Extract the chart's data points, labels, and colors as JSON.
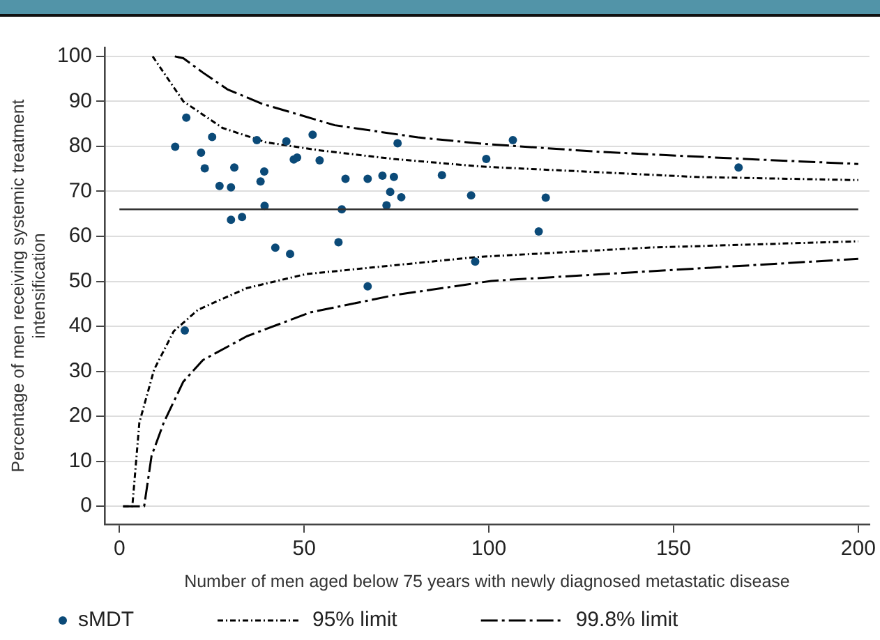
{
  "chart_data": {
    "type": "scatter",
    "xlabel": "Number of men aged below 75 years with newly diagnosed metastatic disease",
    "ylabel": "Percentage of men receiving systemic treatment intensification",
    "xlim": [
      -4,
      203
    ],
    "ylim": [
      -4,
      102
    ],
    "xticks": [
      0,
      50,
      100,
      150,
      200
    ],
    "yticks": [
      0,
      10,
      20,
      30,
      40,
      50,
      60,
      70,
      80,
      90,
      100
    ],
    "grid": "y",
    "legend": "bottom",
    "ref_lines": [
      {
        "axis": "y",
        "value": 66,
        "color": "#333333",
        "line_style": "solid"
      }
    ],
    "series": [
      {
        "name": "sMDT",
        "type": "scatter",
        "marker": "circle",
        "color": "#0b4a78",
        "x": [
          15.1,
          18.1,
          17.7,
          22.1,
          23.1,
          25.1,
          27.1,
          30.2,
          31.1,
          30.2,
          33.2,
          37.2,
          39.2,
          38.2,
          39.3,
          42.2,
          45.2,
          46.2,
          47.2,
          48.1,
          52.3,
          54.2,
          59.3,
          60.2,
          61.2,
          67.2,
          67.2,
          71.2,
          72.3,
          73.3,
          74.3,
          75.3,
          76.3,
          87.3,
          95.2,
          96.3,
          99.3,
          106.5,
          113.5,
          115.4,
          167.6
        ],
        "values": [
          79.9,
          86.4,
          39.1,
          78.6,
          75.1,
          82.1,
          71.2,
          70.9,
          75.3,
          63.7,
          64.3,
          81.4,
          74.4,
          72.2,
          66.8,
          57.5,
          81.1,
          56.1,
          77.1,
          77.5,
          82.6,
          76.9,
          58.7,
          66.0,
          72.8,
          72.8,
          48.9,
          73.5,
          66.9,
          69.9,
          73.2,
          80.7,
          68.7,
          73.6,
          69.1,
          54.4,
          77.2,
          81.4,
          61.1,
          68.6,
          75.3
        ]
      },
      {
        "name": "95% limit",
        "type": "line",
        "marker": "none",
        "color": "#000000",
        "line_style": "dotted",
        "x": [
          9,
          17.3,
          27.9,
          39.7,
          54.4,
          74.2,
          96.7,
          103.3,
          156.2,
          200
        ],
        "values": [
          100,
          90,
          84.1,
          80.9,
          79.1,
          77.2,
          75.6,
          75.3,
          73.2,
          72.5
        ]
      },
      {
        "type": "line",
        "marker": "none",
        "color": "#000000",
        "line_style": "dotted",
        "x": [
          1,
          3.5,
          5.4,
          9.4,
          14.7,
          21.3,
          34.5,
          50.4,
          96.7,
          143,
          200
        ],
        "values": [
          0,
          0,
          18.6,
          30.4,
          38.9,
          43.7,
          48.5,
          51.6,
          55.4,
          57.5,
          58.9
        ]
      },
      {
        "name": "99.8% limit",
        "type": "line",
        "marker": "none",
        "color": "#000000",
        "line_style": "dashed",
        "x": [
          15,
          17.3,
          22.6,
          29.2,
          38.5,
          58.3,
          80.8,
          98,
          129.8,
          169.4,
          200
        ],
        "values": [
          100,
          99.6,
          96.4,
          92.7,
          89.5,
          84.7,
          82,
          80.6,
          78.8,
          77.2,
          76.1
        ]
      },
      {
        "type": "line",
        "marker": "none",
        "color": "#000000",
        "line_style": "dashed",
        "x": [
          1,
          6.7,
          8.7,
          12,
          17.3,
          22.6,
          34.5,
          51.7,
          74.2,
          100.7,
          143,
          200
        ],
        "values": [
          0,
          0,
          11.2,
          18.6,
          27.7,
          32.5,
          37.8,
          43.1,
          46.9,
          50.1,
          52.2,
          55
        ]
      }
    ]
  }
}
